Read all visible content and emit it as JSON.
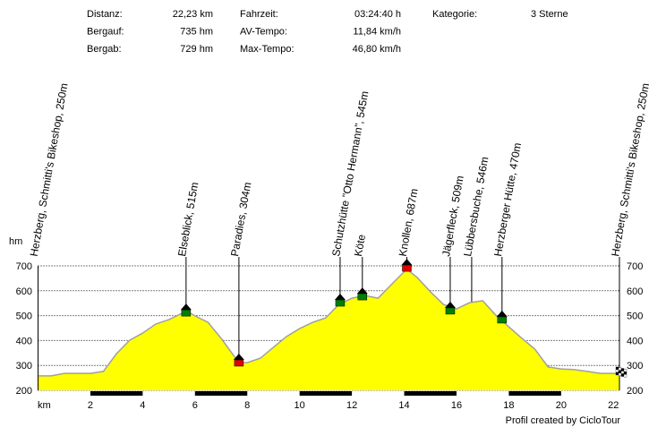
{
  "chart_data": {
    "type": "area",
    "stats": [
      [
        {
          "label": "Distanz:",
          "value": "22,23 km"
        },
        {
          "label": "Bergauf:",
          "value": "735 hm"
        },
        {
          "label": "Bergab:",
          "value": "729 hm"
        }
      ],
      [
        {
          "label": "Fahrzeit:",
          "value": "03:24:40 h"
        },
        {
          "label": "AV-Tempo:",
          "value": "11,84 km/h"
        },
        {
          "label": "Max-Tempo:",
          "value": "46,80 km/h"
        }
      ],
      [
        {
          "label": "Kategorie:",
          "value": "3 Sterne"
        }
      ]
    ],
    "ylabel": "hm",
    "xlabel": "km",
    "credit": "Profil created by CicloTour",
    "x": [
      0,
      0.5,
      1,
      1.5,
      2,
      2.5,
      3,
      3.5,
      4,
      4.5,
      5,
      5.5,
      5.66,
      6,
      6.5,
      7,
      7.5,
      7.7,
      8,
      8.5,
      9,
      9.5,
      10,
      10.5,
      11,
      11.5,
      12,
      12.5,
      13,
      13.5,
      14.1,
      14.5,
      15,
      15.5,
      16,
      16.5,
      17,
      17.5,
      18,
      18.5,
      19,
      19.5,
      20,
      20.5,
      21,
      21.5,
      22,
      22.23
    ],
    "values": [
      258,
      258,
      268,
      268,
      268,
      276,
      347,
      401,
      430,
      466,
      484,
      509,
      520,
      499,
      473,
      409,
      337,
      311,
      311,
      329,
      373,
      416,
      448,
      473,
      491,
      545,
      570,
      581,
      570,
      624,
      687,
      653,
      596,
      545,
      527,
      552,
      560,
      502,
      455,
      409,
      365,
      294,
      286,
      283,
      276,
      268,
      268,
      265
    ],
    "color": "#ffff00",
    "line_color": "#a0a0a0",
    "xlim": [
      0,
      22.23
    ],
    "ylim": [
      200,
      700
    ],
    "xticks": [
      2,
      4,
      6,
      8,
      10,
      12,
      14,
      16,
      18,
      20,
      22
    ],
    "yticks": [
      200,
      300,
      400,
      500,
      600,
      700
    ],
    "grid": true,
    "waypoints": [
      {
        "label": "Herzberg, Schmitti's Bikeshop, 250m",
        "km": 0,
        "marker": null
      },
      {
        "label": "Elseblick, 515m",
        "km": 5.66,
        "elevation": 516,
        "marker": "#008000"
      },
      {
        "label": "Paradies, 304m",
        "km": 7.68,
        "elevation": 315,
        "marker": "#e00000"
      },
      {
        "label": "Schutzhütte \"Otto Hermann\", 545m",
        "km": 11.55,
        "elevation": 556,
        "marker": "#008000"
      },
      {
        "label": "Köte",
        "km": 12.4,
        "elevation": 581,
        "marker": "#008000"
      },
      {
        "label": "Knollen, 687m",
        "km": 14.1,
        "elevation": 696,
        "marker": "#e00000"
      },
      {
        "label": "Jägerfleck, 509m",
        "km": 15.76,
        "elevation": 524,
        "marker": "#008000"
      },
      {
        "label": "Lübbersbuche, 546m",
        "km": 16.58,
        "elevation": 556,
        "marker": null
      },
      {
        "label": "Herzberger Hütte, 470m",
        "km": 17.74,
        "elevation": 488,
        "marker": "#008000"
      },
      {
        "label": "Herzberg, Schmitti's Bikeshop, 250m",
        "km": 22.23,
        "elevation": 265,
        "marker": "flag"
      }
    ]
  }
}
